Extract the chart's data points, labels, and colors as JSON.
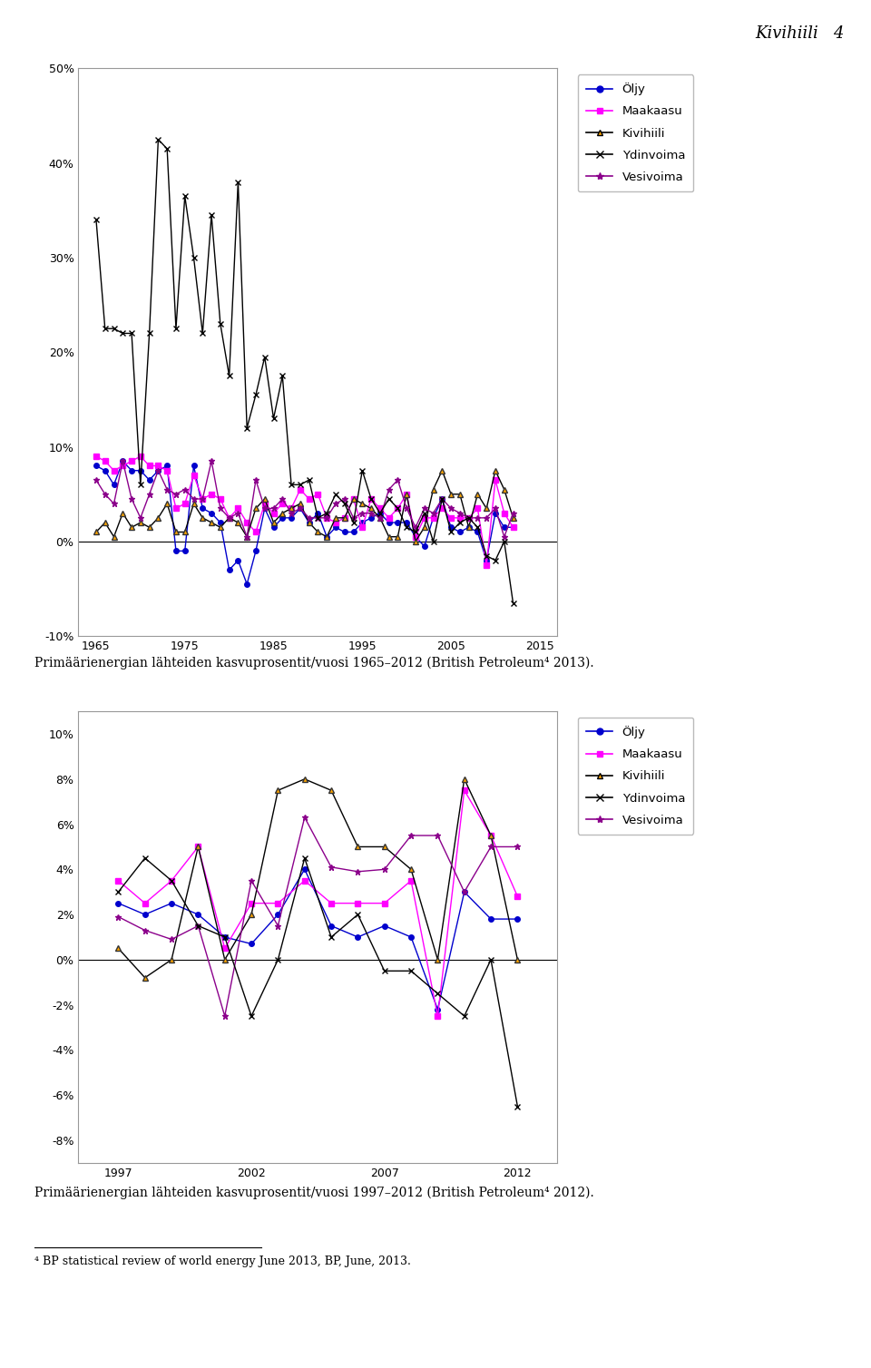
{
  "header_text": "Kivihiili   4",
  "caption1": "Primäärienergian lähteiden kasvuprosentit/vuosi 1965–2012 (British Petroleum⁴ 2013).",
  "caption2": "Primäärienergian lähteiden kasvuprosentit/vuosi 1997–2012 (British Petroleum⁴ 2012).",
  "footnote": "⁴ BP statistical review of world energy June 2013, BP, June, 2013.",
  "chart1": {
    "years": [
      1965,
      1966,
      1967,
      1968,
      1969,
      1970,
      1971,
      1972,
      1973,
      1974,
      1975,
      1976,
      1977,
      1978,
      1979,
      1980,
      1981,
      1982,
      1983,
      1984,
      1985,
      1986,
      1987,
      1988,
      1989,
      1990,
      1991,
      1992,
      1993,
      1994,
      1995,
      1996,
      1997,
      1998,
      1999,
      2000,
      2001,
      2002,
      2003,
      2004,
      2005,
      2006,
      2007,
      2008,
      2009,
      2010,
      2011,
      2012
    ],
    "olj": [
      8.0,
      7.5,
      6.0,
      8.5,
      7.5,
      7.5,
      6.5,
      7.5,
      8.0,
      -1.0,
      -1.0,
      8.0,
      3.5,
      3.0,
      2.0,
      -3.0,
      -2.0,
      -4.5,
      -1.0,
      3.5,
      1.5,
      2.5,
      2.5,
      3.5,
      2.0,
      3.0,
      0.5,
      1.5,
      1.0,
      1.0,
      2.0,
      2.5,
      3.0,
      2.0,
      2.0,
      2.0,
      0.5,
      -0.5,
      2.5,
      4.5,
      1.5,
      1.0,
      1.5,
      1.0,
      -2.0,
      3.0,
      1.5,
      1.5
    ],
    "maakaasu": [
      9.0,
      8.5,
      7.5,
      8.0,
      8.5,
      9.0,
      8.0,
      8.0,
      7.5,
      3.5,
      4.0,
      7.0,
      4.5,
      5.0,
      4.5,
      2.5,
      3.5,
      2.0,
      1.0,
      4.0,
      3.0,
      4.0,
      3.5,
      5.5,
      4.5,
      5.0,
      2.5,
      2.0,
      2.5,
      4.5,
      1.5,
      4.5,
      3.5,
      2.5,
      3.5,
      5.0,
      0.5,
      2.5,
      2.5,
      3.5,
      2.5,
      2.5,
      2.5,
      3.5,
      -2.5,
      6.5,
      3.0,
      1.5
    ],
    "kivihiili": [
      1.0,
      2.0,
      0.5,
      3.0,
      1.5,
      2.0,
      1.5,
      2.5,
      4.0,
      1.0,
      1.0,
      4.0,
      2.5,
      2.0,
      1.5,
      2.5,
      2.0,
      0.5,
      3.5,
      4.5,
      2.0,
      3.0,
      3.5,
      4.0,
      2.0,
      1.0,
      0.5,
      2.5,
      2.5,
      4.5,
      4.0,
      3.5,
      2.5,
      0.5,
      0.5,
      5.0,
      0.0,
      1.5,
      5.5,
      7.5,
      5.0,
      5.0,
      1.5,
      5.0,
      3.5,
      7.5,
      5.5,
      2.5
    ],
    "ydinvoima": [
      34.0,
      22.5,
      22.5,
      22.0,
      22.0,
      6.0,
      22.0,
      42.5,
      41.5,
      22.5,
      36.5,
      30.0,
      22.0,
      34.5,
      23.0,
      17.5,
      38.0,
      12.0,
      15.5,
      19.5,
      13.0,
      17.5,
      6.0,
      6.0,
      6.5,
      2.5,
      3.0,
      5.0,
      4.0,
      2.0,
      7.5,
      4.5,
      3.0,
      4.5,
      3.5,
      1.5,
      1.0,
      3.0,
      0.0,
      4.5,
      1.0,
      2.0,
      2.5,
      1.5,
      -1.5,
      -2.0,
      0.0,
      -6.5
    ],
    "vesivoima": [
      6.5,
      5.0,
      4.0,
      8.5,
      4.5,
      2.5,
      5.0,
      7.5,
      5.5,
      5.0,
      5.5,
      4.5,
      4.5,
      8.5,
      3.5,
      2.5,
      3.0,
      0.5,
      6.5,
      3.5,
      3.5,
      4.5,
      3.0,
      3.5,
      2.5,
      2.5,
      2.5,
      4.0,
      4.5,
      2.5,
      3.0,
      3.0,
      2.5,
      5.5,
      6.5,
      3.5,
      1.5,
      3.5,
      3.0,
      4.5,
      3.5,
      3.0,
      2.5,
      2.5,
      2.5,
      3.5,
      0.5,
      3.0
    ],
    "ylim": [
      -10,
      50
    ],
    "yticks": [
      -10,
      0,
      10,
      20,
      30,
      40,
      50
    ],
    "yticklabels": [
      "-10%",
      "0%",
      "10%",
      "20%",
      "30%",
      "40%",
      "50%"
    ],
    "xlim": [
      1963,
      2017
    ],
    "xticks": [
      1965,
      1975,
      1985,
      1995,
      2005,
      2015
    ]
  },
  "chart2": {
    "years": [
      1997,
      1998,
      1999,
      2000,
      2001,
      2002,
      2003,
      2004,
      2005,
      2006,
      2007,
      2008,
      2009,
      2010,
      2011,
      2012
    ],
    "olj": [
      2.5,
      2.0,
      2.5,
      2.0,
      1.0,
      0.7,
      2.0,
      4.0,
      1.5,
      1.0,
      1.5,
      1.0,
      -2.2,
      3.0,
      1.8,
      1.8
    ],
    "maakaasu": [
      3.5,
      2.5,
      3.5,
      5.0,
      0.5,
      2.5,
      2.5,
      3.5,
      2.5,
      2.5,
      2.5,
      3.5,
      -2.5,
      7.5,
      5.5,
      2.8
    ],
    "kivihiili": [
      0.5,
      -0.8,
      0.0,
      5.0,
      0.0,
      2.0,
      7.5,
      8.0,
      7.5,
      5.0,
      5.0,
      4.0,
      0.0,
      8.0,
      5.5,
      0.0
    ],
    "ydinvoima": [
      3.0,
      4.5,
      3.5,
      1.5,
      1.0,
      -2.5,
      0.0,
      4.5,
      1.0,
      2.0,
      -0.5,
      -0.5,
      -1.5,
      -2.5,
      0.0,
      -6.5
    ],
    "vesivoima_years": [
      1997,
      1998,
      1999,
      2000,
      2001,
      2002,
      2003,
      2004,
      2005,
      2006,
      2007,
      2008,
      2009,
      2010,
      2011,
      2012
    ],
    "vesivoima": [
      1.9,
      1.3,
      0.9,
      1.5,
      -2.5,
      3.5,
      1.5,
      6.3,
      4.1,
      3.9,
      4.0,
      5.5,
      5.5,
      3.0,
      5.0,
      5.0
    ],
    "ylim": [
      -9,
      11
    ],
    "yticks": [
      -8,
      -6,
      -4,
      -2,
      0,
      2,
      4,
      6,
      8,
      10
    ],
    "yticklabels": [
      "-8%",
      "-6%",
      "-4%",
      "-2%",
      "0%",
      "2%",
      "4%",
      "6%",
      "8%",
      "10%"
    ],
    "xlim": [
      1995.5,
      2013.5
    ],
    "xticks": [
      1997,
      2002,
      2007,
      2012
    ]
  },
  "col_olj": "#0000CD",
  "col_maakaasu": "#FF00FF",
  "col_kivi": "#000000",
  "col_ydin": "#000000",
  "col_vesi": "#8B008B",
  "col_kivi_marker": "#FFA500"
}
